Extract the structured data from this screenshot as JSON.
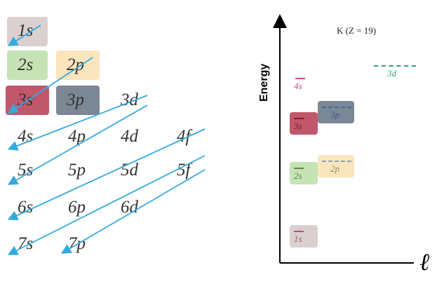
{
  "colors": {
    "n1": "#d9d0cf",
    "n2s": "#c6e3b5",
    "n2p": "#fbe5bc",
    "n3s": "#c0576a",
    "n3p": "#7b8794",
    "arrow": "#33a9e0",
    "label4s": "#c04a8a",
    "label3d": "#2aa36b",
    "label3p": "#3d6fa5"
  },
  "aufbau": {
    "orbitals": [
      {
        "id": "1s",
        "label": "1s",
        "box": "n1"
      },
      {
        "id": "2s",
        "label": "2s",
        "box": "n2s"
      },
      {
        "id": "2p",
        "label": "2p",
        "box": "n2p"
      },
      {
        "id": "3s",
        "label": "3s",
        "box": "n3s"
      },
      {
        "id": "3p",
        "label": "3p",
        "box": "n3p"
      },
      {
        "id": "3d",
        "label": "3d"
      },
      {
        "id": "4s",
        "label": "4s"
      },
      {
        "id": "4p",
        "label": "4p"
      },
      {
        "id": "4d",
        "label": "4d"
      },
      {
        "id": "4f",
        "label": "4f"
      },
      {
        "id": "5s",
        "label": "5s"
      },
      {
        "id": "5p",
        "label": "5p"
      },
      {
        "id": "5d",
        "label": "5d"
      },
      {
        "id": "5f",
        "label": "5f"
      },
      {
        "id": "6s",
        "label": "6s"
      },
      {
        "id": "6p",
        "label": "6p"
      },
      {
        "id": "6d",
        "label": "6d"
      },
      {
        "id": "7s",
        "label": "7s"
      },
      {
        "id": "7p",
        "label": "7p"
      }
    ]
  },
  "energy_diagram": {
    "title": "K (Z = 19)",
    "y_axis_label": "Energy",
    "x_axis_label": "ℓ",
    "levels": [
      {
        "id": "1s",
        "label": "1s",
        "l": 0,
        "energy": 0.08
      },
      {
        "id": "2s",
        "label": "2s",
        "l": 0,
        "energy": 0.43
      },
      {
        "id": "2p",
        "label": "2p",
        "l": 1,
        "energy": 0.47
      },
      {
        "id": "3s",
        "label": "3s",
        "l": 0,
        "energy": 0.71
      },
      {
        "id": "3p",
        "label": "3p",
        "l": 1,
        "energy": 0.77
      },
      {
        "id": "4s",
        "label": "4s",
        "l": 0,
        "energy": 0.93
      },
      {
        "id": "3d",
        "label": "3d",
        "l": 2,
        "energy": 1.0
      }
    ]
  }
}
